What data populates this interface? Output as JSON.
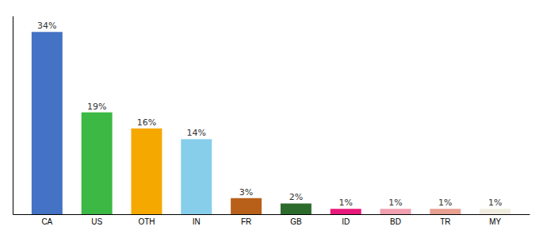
{
  "chart_data": {
    "type": "bar",
    "categories": [
      "CA",
      "US",
      "OTH",
      "IN",
      "FR",
      "GB",
      "ID",
      "BD",
      "TR",
      "MY"
    ],
    "values": [
      34,
      19,
      16,
      14,
      3,
      2,
      1,
      1,
      1,
      1
    ],
    "value_labels": [
      "34%",
      "19%",
      "16%",
      "14%",
      "3%",
      "2%",
      "1%",
      "1%",
      "1%",
      "1%"
    ],
    "colors": [
      "#4472c4",
      "#3cb844",
      "#f5a800",
      "#87ceeb",
      "#b8601a",
      "#2d6b2d",
      "#e8197a",
      "#f0a0b0",
      "#e8a090",
      "#f0ede0"
    ],
    "ylim": [
      0,
      37
    ],
    "data_labels": true,
    "tick_labels": "x",
    "grid": false
  }
}
